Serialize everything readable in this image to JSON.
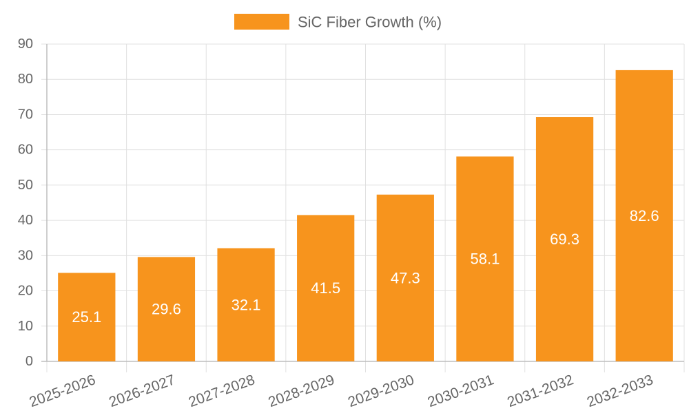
{
  "chart_data": {
    "type": "bar",
    "title": "",
    "xlabel": "",
    "ylabel": "",
    "categories": [
      "2025-2026",
      "2026-2027",
      "2027-2028",
      "2028-2029",
      "2029-2030",
      "2030-2031",
      "2031-2032",
      "2032-2033"
    ],
    "series": [
      {
        "name": "SiC Fiber Growth (%)",
        "values": [
          25.1,
          29.6,
          32.1,
          41.5,
          47.3,
          58.1,
          69.3,
          82.6
        ],
        "color": "#f7941d"
      }
    ],
    "ylim": [
      0,
      90
    ],
    "yticks": [
      0,
      10,
      20,
      30,
      40,
      50,
      60,
      70,
      80,
      90
    ],
    "grid": true,
    "legend_position": "top-center",
    "data_labels": "inside-center",
    "data_label_color": "#ffffff",
    "axis_text_color": "#666666",
    "grid_color": "#e0e0e0"
  }
}
